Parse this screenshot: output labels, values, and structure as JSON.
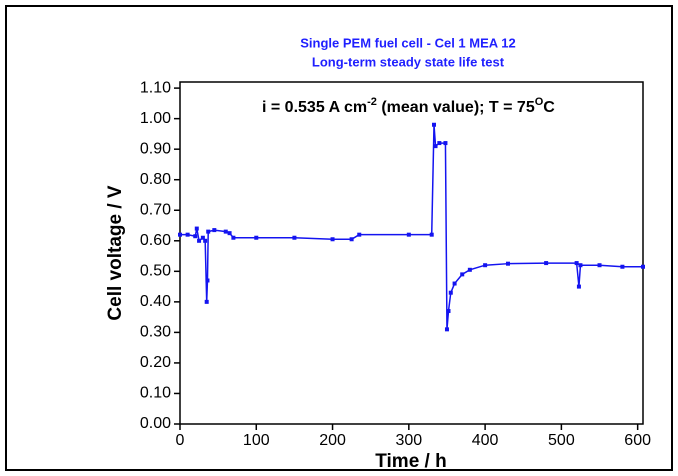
{
  "chart_data": {
    "type": "line",
    "title": [
      "Single PEM fuel cell -  Cel 1 MEA 12",
      "Long-term steady state life test"
    ],
    "annotation": [
      "i = 0.535 A cm",
      "-2",
      " (mean value); T = 75",
      "O",
      "C"
    ],
    "x_label": "Time / h",
    "y_label": "Cell voltage / V",
    "x": [
      0,
      10,
      20,
      22,
      25,
      30,
      33,
      35,
      36,
      37,
      45,
      60,
      65,
      70,
      100,
      150,
      200,
      225,
      235,
      300,
      330,
      333,
      335,
      340,
      348,
      350,
      352,
      355,
      360,
      370,
      380,
      400,
      430,
      480,
      520,
      523,
      525,
      550,
      580,
      607
    ],
    "series": [
      {
        "name": "Cell voltage",
        "color": "#1414f0",
        "marker": "square",
        "values": [
          0.62,
          0.62,
          0.615,
          0.64,
          0.6,
          0.61,
          0.6,
          0.4,
          0.47,
          0.63,
          0.635,
          0.63,
          0.625,
          0.61,
          0.61,
          0.61,
          0.605,
          0.605,
          0.62,
          0.62,
          0.62,
          0.98,
          0.91,
          0.92,
          0.92,
          0.31,
          0.37,
          0.43,
          0.46,
          0.49,
          0.505,
          0.52,
          0.525,
          0.527,
          0.527,
          0.45,
          0.52,
          0.52,
          0.515,
          0.515
        ]
      }
    ],
    "xlim": [
      0,
      607
    ],
    "ylim": [
      0,
      1.12
    ],
    "xticks": [
      0,
      100,
      200,
      300,
      400,
      500,
      600
    ],
    "yticks": [
      {
        "value": 0,
        "label": "0.00"
      },
      {
        "value": 0.1,
        "label": "0.10"
      },
      {
        "value": 0.2,
        "label": "0.20"
      },
      {
        "value": 0.3,
        "label": "0.30"
      },
      {
        "value": 0.4,
        "label": "0.40"
      },
      {
        "value": 0.5,
        "label": "0.50"
      },
      {
        "value": 0.6,
        "label": "0.60"
      },
      {
        "value": 0.7,
        "label": "0.70"
      },
      {
        "value": 0.8,
        "label": "0.80"
      },
      {
        "value": 0.9,
        "label": "0.90"
      },
      {
        "value": 1.0,
        "label": "1.00"
      },
      {
        "value": 1.1,
        "label": "1.10"
      }
    ],
    "title_color": "#1f1fff",
    "grid": false
  }
}
